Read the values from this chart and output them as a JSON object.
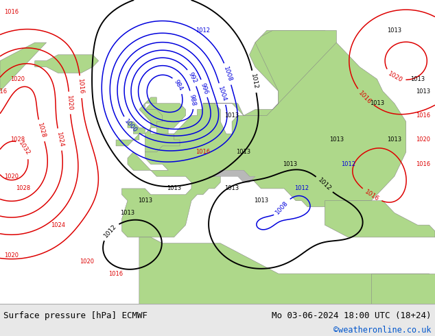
{
  "title_left": "Surface pressure [hPa] ECMWF",
  "title_right": "Mo 03-06-2024 18:00 UTC (18+24)",
  "credit": "©weatheronline.co.uk",
  "footer_bg": "#e8e8e8",
  "fig_width": 6.34,
  "fig_height": 4.9,
  "dpi": 100,
  "land_color": "#aed88a",
  "land_color2": "#c8e8a0",
  "sea_color": "#dde8f0",
  "atlantic_color": "#e8eef4",
  "mountain_color": "#b8b8b8",
  "isobar_blue": "#0000dd",
  "isobar_red": "#dd0000",
  "isobar_black": "#000000",
  "footer_fontsize": 9,
  "credit_fontsize": 8.5,
  "credit_color": "#0055cc",
  "label_fontsize": 6.5
}
